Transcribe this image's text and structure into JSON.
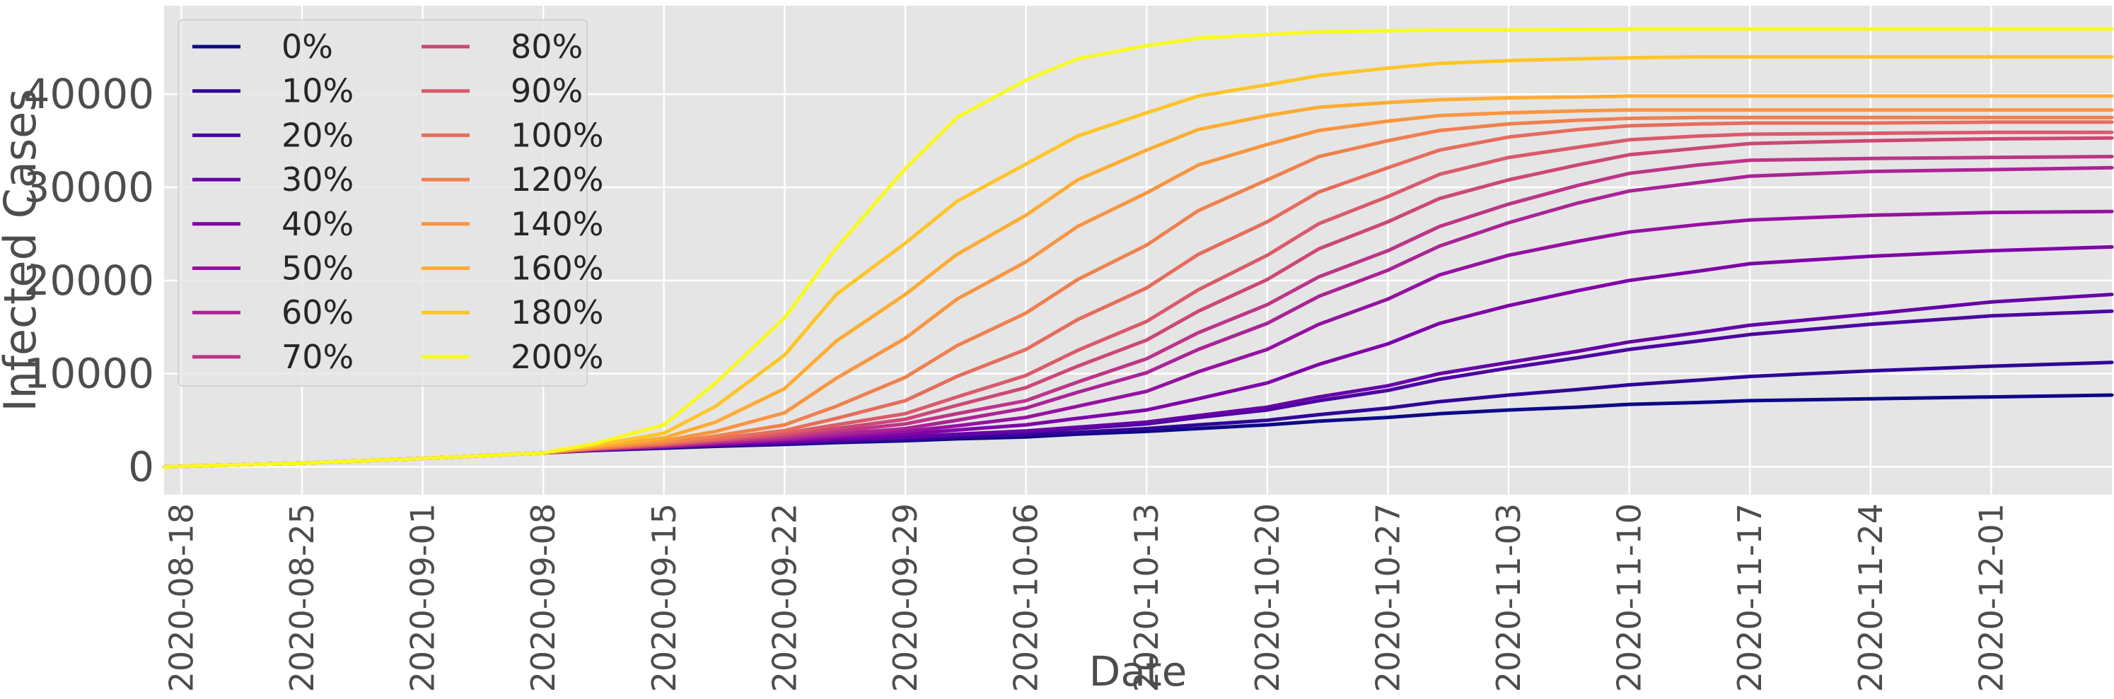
{
  "chart_data": {
    "type": "line",
    "title": "",
    "xlabel": "Date",
    "ylabel": "Infected Cases",
    "x_range": [
      "2020-08-17",
      "2020-12-08"
    ],
    "ylim": [
      -3000,
      49500
    ],
    "x_ticks": [
      "2020-08-18",
      "2020-08-25",
      "2020-09-01",
      "2020-09-08",
      "2020-09-15",
      "2020-09-22",
      "2020-09-29",
      "2020-10-06",
      "2020-10-13",
      "2020-10-20",
      "2020-10-27",
      "2020-11-03",
      "2020-11-10",
      "2020-11-17",
      "2020-11-24",
      "2020-12-01"
    ],
    "y_ticks": [
      0,
      10000,
      20000,
      30000,
      40000
    ],
    "grid": true,
    "legend": {
      "position": "top-left",
      "columns": 2
    },
    "x": [
      "2020-08-17",
      "2020-08-25",
      "2020-09-01",
      "2020-09-08",
      "2020-09-11",
      "2020-09-15",
      "2020-09-18",
      "2020-09-22",
      "2020-09-25",
      "2020-09-29",
      "2020-10-02",
      "2020-10-06",
      "2020-10-09",
      "2020-10-13",
      "2020-10-16",
      "2020-10-20",
      "2020-10-23",
      "2020-10-27",
      "2020-10-30",
      "2020-11-03",
      "2020-11-07",
      "2020-11-10",
      "2020-11-14",
      "2020-11-17",
      "2020-11-24",
      "2020-12-01",
      "2020-12-08"
    ],
    "series": [
      {
        "name": "0%",
        "color": "#0d0887",
        "values": [
          0,
          400,
          900,
          1500,
          1750,
          2000,
          2200,
          2400,
          2600,
          2800,
          3000,
          3200,
          3500,
          3800,
          4100,
          4500,
          4900,
          5300,
          5700,
          6100,
          6400,
          6700,
          6900,
          7100,
          7300,
          7500,
          7700
        ]
      },
      {
        "name": "10%",
        "color": "#2f0596",
        "values": [
          0,
          400,
          900,
          1500,
          1800,
          2050,
          2250,
          2500,
          2700,
          2900,
          3150,
          3400,
          3700,
          4100,
          4500,
          5000,
          5600,
          6300,
          7000,
          7700,
          8300,
          8800,
          9300,
          9700,
          10300,
          10800,
          11200
        ]
      },
      {
        "name": "20%",
        "color": "#4b03a1",
        "values": [
          0,
          400,
          900,
          1500,
          1800,
          2100,
          2350,
          2600,
          2850,
          3100,
          3400,
          3700,
          4100,
          4600,
          5300,
          6100,
          7100,
          8200,
          9400,
          10600,
          11700,
          12600,
          13500,
          14200,
          15300,
          16200,
          16700
        ]
      },
      {
        "name": "30%",
        "color": "#6500a7",
        "values": [
          0,
          400,
          900,
          1500,
          1800,
          2100,
          2350,
          2650,
          2900,
          3200,
          3500,
          3850,
          4250,
          4800,
          5500,
          6400,
          7500,
          8700,
          10000,
          11200,
          12400,
          13400,
          14400,
          15200,
          16400,
          17700,
          18500
        ]
      },
      {
        "name": "40%",
        "color": "#7e03a8",
        "values": [
          0,
          400,
          900,
          1500,
          1850,
          2150,
          2450,
          2800,
          3100,
          3500,
          3950,
          4500,
          5200,
          6100,
          7300,
          9000,
          11000,
          13200,
          15400,
          17300,
          18900,
          20000,
          21000,
          21800,
          22600,
          23200,
          23600
        ]
      },
      {
        "name": "50%",
        "color": "#9511a1",
        "values": [
          0,
          400,
          900,
          1500,
          1850,
          2200,
          2500,
          2900,
          3300,
          3800,
          4400,
          5300,
          6500,
          8100,
          10200,
          12600,
          15300,
          18000,
          20600,
          22700,
          24200,
          25200,
          26000,
          26500,
          27000,
          27300,
          27400
        ]
      },
      {
        "name": "60%",
        "color": "#aa2395",
        "values": [
          0,
          400,
          900,
          1500,
          1850,
          2200,
          2600,
          3000,
          3500,
          4100,
          5000,
          6300,
          8000,
          10100,
          12600,
          15400,
          18300,
          21100,
          23700,
          26200,
          28300,
          29600,
          30500,
          31200,
          31700,
          31900,
          32100
        ]
      },
      {
        "name": "70%",
        "color": "#bc3587",
        "values": [
          0,
          400,
          900,
          1500,
          1900,
          2300,
          2700,
          3200,
          3800,
          4600,
          5700,
          7100,
          9100,
          11600,
          14400,
          17400,
          20400,
          23200,
          25800,
          28200,
          30200,
          31500,
          32400,
          32900,
          33100,
          33200,
          33300
        ]
      },
      {
        "name": "80%",
        "color": "#cc4778",
        "values": [
          0,
          400,
          900,
          1500,
          1900,
          2350,
          2800,
          3400,
          4100,
          5100,
          6600,
          8500,
          10800,
          13600,
          16700,
          20100,
          23400,
          26300,
          28800,
          30800,
          32400,
          33500,
          34200,
          34700,
          35000,
          35200,
          35300
        ]
      },
      {
        "name": "90%",
        "color": "#da5a6a",
        "values": [
          0,
          400,
          900,
          1500,
          1950,
          2400,
          2900,
          3600,
          4500,
          5700,
          7500,
          9800,
          12500,
          15600,
          19000,
          22700,
          26100,
          29000,
          31400,
          33200,
          34300,
          35100,
          35500,
          35700,
          35800,
          35900,
          35900
        ]
      },
      {
        "name": "100%",
        "color": "#e66c5c",
        "values": [
          0,
          400,
          900,
          1500,
          2000,
          2500,
          3000,
          3900,
          5200,
          7100,
          9700,
          12600,
          15800,
          19200,
          22800,
          26300,
          29500,
          32100,
          34000,
          35400,
          36200,
          36600,
          36800,
          36900,
          36900,
          37000,
          37000
        ]
      },
      {
        "name": "120%",
        "color": "#f0804e",
        "values": [
          0,
          400,
          900,
          1500,
          2000,
          2600,
          3300,
          4500,
          6500,
          9600,
          13000,
          16500,
          20100,
          23800,
          27500,
          30800,
          33300,
          35000,
          36100,
          36800,
          37200,
          37400,
          37500,
          37500,
          37500,
          37500,
          37500
        ]
      },
      {
        "name": "140%",
        "color": "#f89540",
        "values": [
          0,
          400,
          900,
          1500,
          2100,
          2800,
          3800,
          5800,
          9500,
          13800,
          18000,
          22000,
          25800,
          29400,
          32400,
          34600,
          36100,
          37100,
          37700,
          38000,
          38200,
          38300,
          38300,
          38300,
          38300,
          38300,
          38300
        ]
      },
      {
        "name": "160%",
        "color": "#fdac33",
        "values": [
          0,
          400,
          900,
          1500,
          2200,
          3100,
          4800,
          8400,
          13500,
          18500,
          22800,
          27000,
          30800,
          34000,
          36200,
          37700,
          38600,
          39100,
          39400,
          39600,
          39700,
          39800,
          39800,
          39800,
          39800,
          39800,
          39800
        ]
      },
      {
        "name": "180%",
        "color": "#fdc527",
        "values": [
          0,
          400,
          900,
          1500,
          2300,
          3600,
          6500,
          12000,
          18500,
          24000,
          28500,
          32500,
          35500,
          38000,
          39800,
          41000,
          42000,
          42800,
          43300,
          43600,
          43800,
          43900,
          44000,
          44000,
          44000,
          44000,
          44000
        ]
      },
      {
        "name": "200%",
        "color": "#f8f921",
        "values": [
          0,
          400,
          900,
          1500,
          2500,
          4500,
          9000,
          16000,
          23500,
          32000,
          37500,
          41500,
          43800,
          45200,
          46000,
          46400,
          46700,
          46800,
          46900,
          46900,
          46950,
          47000,
          47000,
          47000,
          47000,
          47000,
          47000
        ]
      }
    ]
  }
}
